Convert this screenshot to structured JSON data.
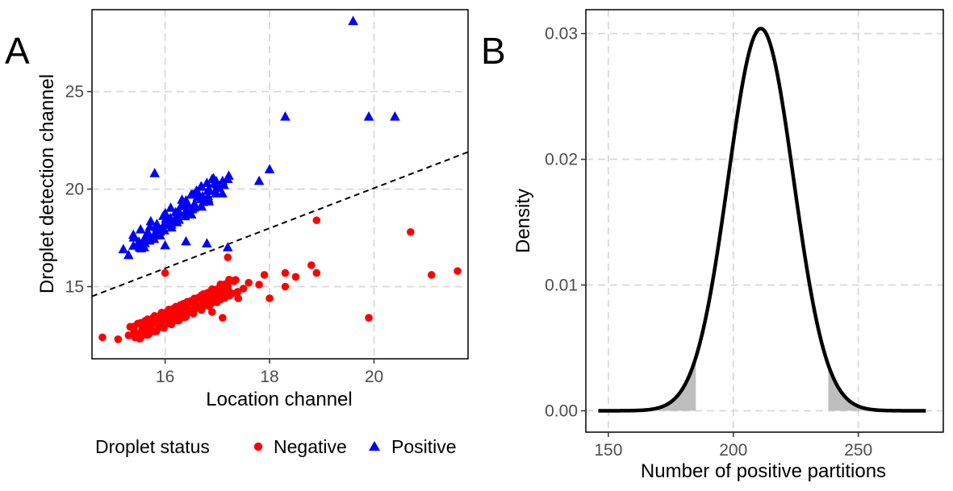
{
  "figure": {
    "panel_a_tag": "A",
    "panel_b_tag": "B",
    "legend": {
      "title": "Droplet status",
      "entries": [
        {
          "label": "Negative",
          "color": "#ff0000",
          "shape": "circle"
        },
        {
          "label": "Positive",
          "color": "#0000ff",
          "shape": "triangle"
        }
      ]
    }
  },
  "chart_data": [
    {
      "type": "scatter",
      "xlabel": "Location channel",
      "ylabel": "Droplet detection channel",
      "xlim": [
        14.6,
        21.8
      ],
      "ylim": [
        11.3,
        29.2
      ],
      "xticks": [
        16,
        18,
        20
      ],
      "yticks": [
        15,
        20,
        25
      ],
      "grid": true,
      "legend_position": "bottom",
      "threshold_line": {
        "style": "dashed",
        "color": "#000000",
        "points": [
          [
            14.6,
            14.5
          ],
          [
            21.8,
            21.9
          ]
        ]
      },
      "series": [
        {
          "name": "Negative",
          "color": "#ff0000",
          "marker": "circle",
          "points": [
            [
              14.8,
              12.4
            ],
            [
              15.1,
              12.3
            ],
            [
              15.3,
              12.5
            ],
            [
              15.5,
              12.6
            ],
            [
              15.6,
              12.8
            ],
            [
              15.7,
              12.9
            ],
            [
              15.8,
              12.7
            ],
            [
              15.9,
              13.0
            ],
            [
              16.0,
              13.1
            ],
            [
              16.0,
              15.7
            ],
            [
              16.1,
              13.2
            ],
            [
              16.2,
              13.3
            ],
            [
              16.3,
              13.4
            ],
            [
              16.4,
              13.6
            ],
            [
              16.5,
              13.7
            ],
            [
              16.6,
              13.9
            ],
            [
              16.7,
              14.0
            ],
            [
              16.8,
              14.2
            ],
            [
              16.9,
              14.3
            ],
            [
              17.0,
              14.5
            ],
            [
              17.1,
              14.7
            ],
            [
              17.2,
              15.0
            ],
            [
              17.3,
              15.3
            ],
            [
              17.2,
              16.5
            ],
            [
              17.4,
              14.4
            ],
            [
              17.5,
              14.9
            ],
            [
              17.6,
              15.2
            ],
            [
              17.8,
              15.1
            ],
            [
              17.9,
              15.6
            ],
            [
              18.0,
              14.4
            ],
            [
              18.3,
              15.0
            ],
            [
              18.3,
              15.7
            ],
            [
              18.5,
              15.5
            ],
            [
              18.8,
              16.1
            ],
            [
              18.9,
              15.7
            ],
            [
              18.9,
              18.4
            ],
            [
              19.9,
              13.4
            ],
            [
              20.7,
              17.8
            ],
            [
              21.1,
              15.6
            ],
            [
              21.6,
              15.8
            ],
            [
              17.1,
              13.4
            ],
            [
              16.9,
              13.7
            ]
          ]
        },
        {
          "name": "Positive",
          "color": "#0000ff",
          "marker": "triangle",
          "points": [
            [
              15.2,
              16.9
            ],
            [
              15.3,
              16.6
            ],
            [
              15.5,
              17.2
            ],
            [
              15.6,
              17.0
            ],
            [
              15.7,
              17.4
            ],
            [
              15.8,
              17.6
            ],
            [
              15.8,
              20.8
            ],
            [
              15.9,
              17.8
            ],
            [
              16.0,
              18.2
            ],
            [
              16.1,
              18.5
            ],
            [
              16.2,
              18.8
            ],
            [
              16.3,
              19.1
            ],
            [
              16.4,
              19.4
            ],
            [
              16.5,
              19.7
            ],
            [
              16.6,
              19.9
            ],
            [
              16.7,
              20.1
            ],
            [
              16.8,
              20.3
            ],
            [
              16.9,
              20.5
            ],
            [
              17.0,
              20.2
            ],
            [
              17.1,
              20.4
            ],
            [
              17.2,
              20.5
            ],
            [
              16.0,
              17.1
            ],
            [
              16.4,
              17.3
            ],
            [
              16.8,
              17.2
            ],
            [
              17.2,
              17.0
            ],
            [
              17.8,
              20.4
            ],
            [
              18.0,
              21.0
            ],
            [
              18.3,
              23.7
            ],
            [
              19.6,
              28.6
            ],
            [
              19.9,
              23.7
            ],
            [
              20.4,
              23.7
            ]
          ]
        }
      ]
    },
    {
      "type": "area",
      "xlabel": "Number of positive partitions",
      "ylabel": "Density",
      "xlim": [
        141,
        284
      ],
      "ylim": [
        -0.0017,
        0.0319
      ],
      "xticks": [
        150,
        200,
        250
      ],
      "yticks": [
        0.0,
        0.01,
        0.02,
        0.03
      ],
      "ytick_labels": [
        "0.00",
        "0.01",
        "0.02",
        "0.03"
      ],
      "grid": true,
      "series": [
        {
          "name": "",
          "color": "#000000",
          "curve": "normal density",
          "mean": 211,
          "sd": 13.1,
          "x_range": [
            146,
            277
          ],
          "peak_density": 0.0304
        }
      ],
      "shaded_tails": [
        {
          "from": 146,
          "to": 185,
          "color": "#bebebe"
        },
        {
          "from": 238,
          "to": 277,
          "color": "#bebebe"
        }
      ]
    }
  ]
}
